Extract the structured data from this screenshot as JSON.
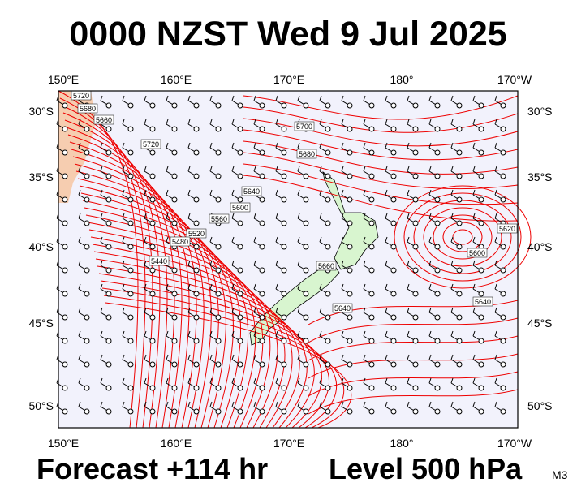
{
  "title": "0000 NZST Wed 9 Jul 2025",
  "longitude_labels": [
    "150°E",
    "160°E",
    "170°E",
    "180°",
    "170°W"
  ],
  "latitude_labels": [
    "30°S",
    "35°S",
    "40°S",
    "45°S",
    "50°S"
  ],
  "footer": {
    "forecast": "Forecast +114 hr",
    "level": "Level 500 hPa",
    "model": "M3"
  },
  "contour_labels": [
    5720,
    5680,
    5660,
    5720,
    5700,
    5680,
    5640,
    5600,
    5560,
    5520,
    5480,
    5440,
    5660,
    5640,
    5600,
    5620,
    5640
  ]
}
